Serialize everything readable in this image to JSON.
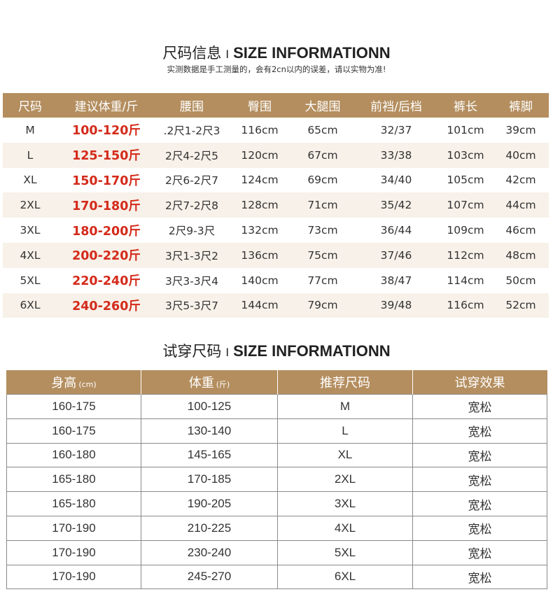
{
  "section1": {
    "title_cn": "尺码信息",
    "separator": "I",
    "title_en": "SIZE INFORMATIONN",
    "note": "实测数据是手工测量的，会有2cn以内的误差，请以实物为准!",
    "columns": [
      "尺码",
      "建议体重/斤",
      "腰围",
      "臀围",
      "大腿围",
      "前裆/后档",
      "裤长",
      "裤脚"
    ],
    "rows": [
      [
        "M",
        "100-120斤",
        ".2尺1-2尺3",
        "116cm",
        "65cm",
        "32/37",
        "101cm",
        "39cm"
      ],
      [
        "L",
        "125-150斤",
        "2尺4-2尺5",
        "120cm",
        "67cm",
        "33/38",
        "103cm",
        "40cm"
      ],
      [
        "XL",
        "150-170斤",
        "2尺6-2尺7",
        "124cm",
        "69cm",
        "34/40",
        "105cm",
        "42cm"
      ],
      [
        "2XL",
        "170-180斤",
        "2尺7-2尺8",
        "128cm",
        "71cm",
        "35/42",
        "107cm",
        "44cm"
      ],
      [
        "3XL",
        "180-200斤",
        "2尺9-3尺",
        "132cm",
        "73cm",
        "36/44",
        "109cm",
        "46cm"
      ],
      [
        "4XL",
        "200-220斤",
        "3尺1-3尺2",
        "136cm",
        "75cm",
        "37/46",
        "112cm",
        "48cm"
      ],
      [
        "5XL",
        "220-240斤",
        "3尺3-3尺4",
        "140cm",
        "77cm",
        "38/47",
        "114cm",
        "50cm"
      ],
      [
        "6XL",
        "240-260斤",
        "3尺5-3尺7",
        "144cm",
        "79cm",
        "39/48",
        "116cm",
        "52cm"
      ]
    ]
  },
  "section2": {
    "title_cn": "试穿尺码",
    "separator": "I",
    "title_en": "SIZE INFORMATIONN",
    "columns": [
      {
        "label": "身高",
        "unit": "(cm)"
      },
      {
        "label": "体重",
        "unit": "(斤)"
      },
      {
        "label": "推荐尺码",
        "unit": ""
      },
      {
        "label": "试穿效果",
        "unit": ""
      }
    ],
    "rows": [
      [
        "160-175",
        "100-125",
        "M",
        "宽松"
      ],
      [
        "160-175",
        "130-140",
        "L",
        "宽松"
      ],
      [
        "160-180",
        "145-165",
        "XL",
        "宽松"
      ],
      [
        "165-180",
        "170-185",
        "2XL",
        "宽松"
      ],
      [
        "165-180",
        "190-205",
        "3XL",
        "宽松"
      ],
      [
        "170-190",
        "210-225",
        "4XL",
        "宽松"
      ],
      [
        "170-190",
        "230-240",
        "5XL",
        "宽松"
      ],
      [
        "170-190",
        "245-270",
        "6XL",
        "宽松"
      ]
    ]
  },
  "colors": {
    "header_bg": "#b48e5f",
    "alt_row_bg": "#f7f1e9",
    "weight_red": "#d42a1a"
  }
}
